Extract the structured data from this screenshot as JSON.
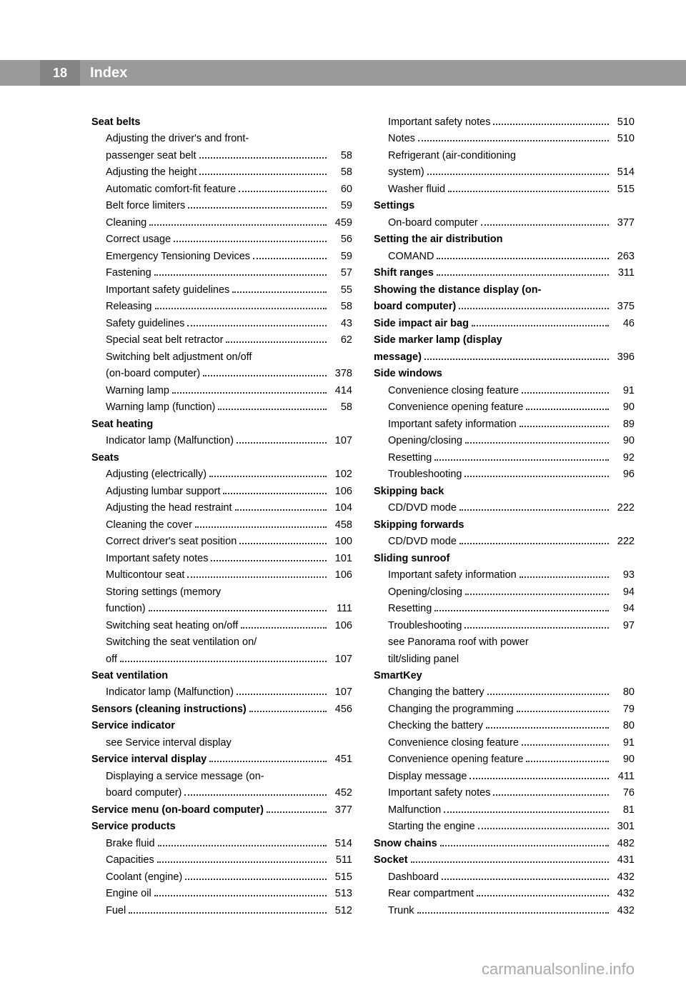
{
  "page_number": "18",
  "header_title": "Index",
  "footer_text": "carmanualsonline.info",
  "columns": [
    [
      {
        "type": "heading",
        "text": "Seat belts"
      },
      {
        "type": "sub_multi",
        "lines": [
          "Adjusting the driver's and front-",
          "passenger seat belt"
        ],
        "page": "58"
      },
      {
        "type": "sub",
        "text": "Adjusting the height",
        "page": "58"
      },
      {
        "type": "sub",
        "text": "Automatic comfort-fit feature",
        "page": "60"
      },
      {
        "type": "sub",
        "text": "Belt force limiters",
        "page": "59"
      },
      {
        "type": "sub",
        "text": "Cleaning",
        "page": "459"
      },
      {
        "type": "sub",
        "text": "Correct usage",
        "page": "56"
      },
      {
        "type": "sub",
        "text": "Emergency Tensioning Devices",
        "page": "59"
      },
      {
        "type": "sub",
        "text": "Fastening",
        "page": "57"
      },
      {
        "type": "sub",
        "text": "Important safety guidelines",
        "page": "55"
      },
      {
        "type": "sub",
        "text": "Releasing",
        "page": "58"
      },
      {
        "type": "sub",
        "text": "Safety guidelines",
        "page": "43"
      },
      {
        "type": "sub",
        "text": "Special seat belt retractor",
        "page": "62"
      },
      {
        "type": "sub_multi",
        "lines": [
          "Switching belt adjustment on/off",
          "(on-board computer)"
        ],
        "page": "378"
      },
      {
        "type": "sub",
        "text": "Warning lamp",
        "page": "414"
      },
      {
        "type": "sub",
        "text": "Warning lamp (function)",
        "page": "58"
      },
      {
        "type": "heading",
        "text": "Seat heating"
      },
      {
        "type": "sub",
        "text": "Indicator lamp (Malfunction)",
        "page": "107"
      },
      {
        "type": "heading",
        "text": "Seats"
      },
      {
        "type": "sub",
        "text": "Adjusting (electrically)",
        "page": "102"
      },
      {
        "type": "sub",
        "text": "Adjusting lumbar support",
        "page": "106"
      },
      {
        "type": "sub",
        "text": "Adjusting the head restraint",
        "page": "104"
      },
      {
        "type": "sub",
        "text": "Cleaning the cover",
        "page": "458"
      },
      {
        "type": "sub",
        "text": "Correct driver's seat position",
        "page": "100"
      },
      {
        "type": "sub",
        "text": "Important safety notes",
        "page": "101"
      },
      {
        "type": "sub",
        "text": "Multicontour seat",
        "page": "106"
      },
      {
        "type": "sub_multi",
        "lines": [
          "Storing settings (memory",
          "function)"
        ],
        "page": "111"
      },
      {
        "type": "sub",
        "text": "Switching seat heating on/off",
        "page": "106"
      },
      {
        "type": "sub_multi",
        "lines": [
          "Switching the seat ventilation on/",
          "off"
        ],
        "page": "107"
      },
      {
        "type": "heading",
        "text": "Seat ventilation"
      },
      {
        "type": "sub",
        "text": "Indicator lamp (Malfunction)",
        "page": "107"
      },
      {
        "type": "top_bold",
        "text": "Sensors (cleaning instructions)",
        "page": "456"
      },
      {
        "type": "heading",
        "text": "Service indicator"
      },
      {
        "type": "sub_plain",
        "text": "see Service interval display"
      },
      {
        "type": "top_bold",
        "text": "Service interval display",
        "page": "451"
      },
      {
        "type": "sub_multi",
        "lines": [
          "Displaying a service message (on-",
          "board computer)"
        ],
        "page": "452"
      },
      {
        "type": "top_bold",
        "text": "Service menu (on-board computer)",
        "page": "377",
        "short_dots": true
      },
      {
        "type": "heading",
        "text": "Service products"
      },
      {
        "type": "sub",
        "text": "Brake fluid",
        "page": "514"
      },
      {
        "type": "sub",
        "text": "Capacities",
        "page": "511"
      },
      {
        "type": "sub",
        "text": "Coolant (engine)",
        "page": "515"
      },
      {
        "type": "sub",
        "text": "Engine oil",
        "page": "513"
      },
      {
        "type": "sub",
        "text": "Fuel",
        "page": "512"
      }
    ],
    [
      {
        "type": "sub",
        "text": "Important safety notes",
        "page": "510"
      },
      {
        "type": "sub",
        "text": "Notes",
        "page": "510"
      },
      {
        "type": "sub_multi",
        "lines": [
          "Refrigerant (air-conditioning",
          "system)"
        ],
        "page": "514"
      },
      {
        "type": "sub",
        "text": "Washer fluid",
        "page": "515"
      },
      {
        "type": "heading",
        "text": "Settings"
      },
      {
        "type": "sub",
        "text": "On-board computer",
        "page": "377"
      },
      {
        "type": "heading",
        "text": "Setting the air distribution"
      },
      {
        "type": "sub",
        "text": "COMAND",
        "page": "263"
      },
      {
        "type": "top_bold",
        "text": "Shift ranges",
        "page": "311"
      },
      {
        "type": "heading_multi",
        "lines": [
          "Showing the distance display (on-",
          "board computer)"
        ],
        "page": "375"
      },
      {
        "type": "top_bold",
        "text": "Side impact air bag",
        "page": "46"
      },
      {
        "type": "heading_multi",
        "lines": [
          "Side marker lamp (display",
          "message)"
        ],
        "page": "396"
      },
      {
        "type": "heading",
        "text": "Side windows"
      },
      {
        "type": "sub",
        "text": "Convenience closing feature",
        "page": "91"
      },
      {
        "type": "sub",
        "text": "Convenience opening feature",
        "page": "90"
      },
      {
        "type": "sub",
        "text": "Important safety information",
        "page": "89"
      },
      {
        "type": "sub",
        "text": "Opening/closing",
        "page": "90"
      },
      {
        "type": "sub",
        "text": "Resetting",
        "page": "92"
      },
      {
        "type": "sub",
        "text": "Troubleshooting",
        "page": "96"
      },
      {
        "type": "heading",
        "text": "Skipping back"
      },
      {
        "type": "sub",
        "text": "CD/DVD mode",
        "page": "222"
      },
      {
        "type": "heading",
        "text": "Skipping forwards"
      },
      {
        "type": "sub",
        "text": "CD/DVD mode",
        "page": "222"
      },
      {
        "type": "heading",
        "text": "Sliding sunroof"
      },
      {
        "type": "sub",
        "text": "Important safety information",
        "page": "93"
      },
      {
        "type": "sub",
        "text": "Opening/closing",
        "page": "94"
      },
      {
        "type": "sub",
        "text": "Resetting",
        "page": "94"
      },
      {
        "type": "sub",
        "text": "Troubleshooting",
        "page": "97"
      },
      {
        "type": "sub_plain_multi",
        "lines": [
          "see Panorama roof with power",
          "tilt/sliding panel"
        ]
      },
      {
        "type": "heading",
        "text": "SmartKey"
      },
      {
        "type": "sub",
        "text": "Changing the battery",
        "page": "80"
      },
      {
        "type": "sub",
        "text": "Changing the programming",
        "page": "79"
      },
      {
        "type": "sub",
        "text": "Checking the battery",
        "page": "80"
      },
      {
        "type": "sub",
        "text": "Convenience closing feature",
        "page": "91"
      },
      {
        "type": "sub",
        "text": "Convenience opening feature",
        "page": "90"
      },
      {
        "type": "sub",
        "text": "Display message",
        "page": "411"
      },
      {
        "type": "sub",
        "text": "Important safety notes",
        "page": "76"
      },
      {
        "type": "sub",
        "text": "Malfunction",
        "page": "81"
      },
      {
        "type": "sub",
        "text": "Starting the engine",
        "page": "301"
      },
      {
        "type": "top_bold",
        "text": "Snow chains",
        "page": "482"
      },
      {
        "type": "top_bold",
        "text": "Socket",
        "page": "431"
      },
      {
        "type": "sub",
        "text": "Dashboard",
        "page": "432"
      },
      {
        "type": "sub",
        "text": "Rear compartment",
        "page": "432"
      },
      {
        "type": "sub",
        "text": "Trunk",
        "page": "432"
      }
    ]
  ]
}
